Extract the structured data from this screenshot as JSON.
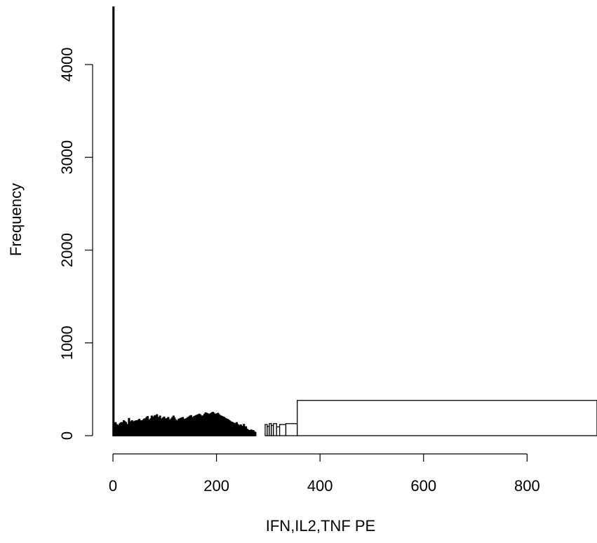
{
  "chart_data": {
    "type": "histogram",
    "title": "",
    "xlabel": "IFN,IL2,TNF PE",
    "ylabel": "Frequency",
    "xlim": [
      0,
      935
    ],
    "ylim": [
      0,
      4620
    ],
    "x_ticks": [
      0,
      200,
      400,
      600,
      800
    ],
    "x_tick_labels": [
      "0",
      "200",
      "400",
      "600",
      "800"
    ],
    "x_axis_line": [
      0,
      800
    ],
    "y_ticks": [
      0,
      1000,
      2000,
      3000,
      4000
    ],
    "y_tick_labels": [
      "0",
      "1000",
      "2000",
      "3000",
      "4000"
    ],
    "bin_width": 2,
    "series": [
      {
        "x_start": 0,
        "values": [
          4620,
          130,
          140,
          120,
          110,
          100,
          125,
          135,
          140,
          115,
          160,
          150,
          140,
          95,
          120,
          185,
          130,
          150,
          160,
          140,
          150,
          155,
          160,
          140,
          165,
          175,
          145,
          160,
          155,
          170,
          180,
          175,
          195,
          205,
          170,
          150,
          180,
          210,
          190,
          200,
          215,
          200,
          225,
          195,
          150,
          210,
          160,
          180,
          190,
          200,
          180,
          175,
          185,
          195,
          170,
          165,
          180,
          195,
          210,
          190,
          170,
          155,
          160,
          175,
          180,
          185,
          190,
          195,
          170,
          175,
          180,
          185,
          195,
          200,
          210,
          215,
          190,
          195,
          205,
          210,
          215,
          220,
          225,
          230,
          220,
          210,
          205,
          215,
          230,
          245,
          240,
          235,
          230,
          225,
          235,
          245,
          250,
          240,
          225,
          230,
          235,
          240,
          225,
          215,
          210,
          205,
          200,
          195,
          185,
          180,
          175,
          170,
          160,
          150,
          145,
          140,
          135,
          130,
          125,
          140,
          120,
          110,
          105,
          115,
          100,
          90,
          120,
          85,
          95,
          70,
          60,
          55,
          50,
          60,
          45,
          55,
          40,
          35
        ]
      }
    ],
    "wide_bins": [
      {
        "x0": 294,
        "x1": 298,
        "value": 120
      },
      {
        "x0": 298,
        "x1": 302,
        "value": 100
      },
      {
        "x0": 302,
        "x1": 306,
        "value": 130
      },
      {
        "x0": 306,
        "x1": 310,
        "value": 110
      },
      {
        "x0": 310,
        "x1": 316,
        "value": 130
      },
      {
        "x0": 316,
        "x1": 322,
        "value": 95
      },
      {
        "x0": 322,
        "x1": 334,
        "value": 120
      },
      {
        "x0": 334,
        "x1": 356,
        "value": 130
      },
      {
        "x0": 356,
        "x1": 935,
        "value": 380
      }
    ]
  }
}
